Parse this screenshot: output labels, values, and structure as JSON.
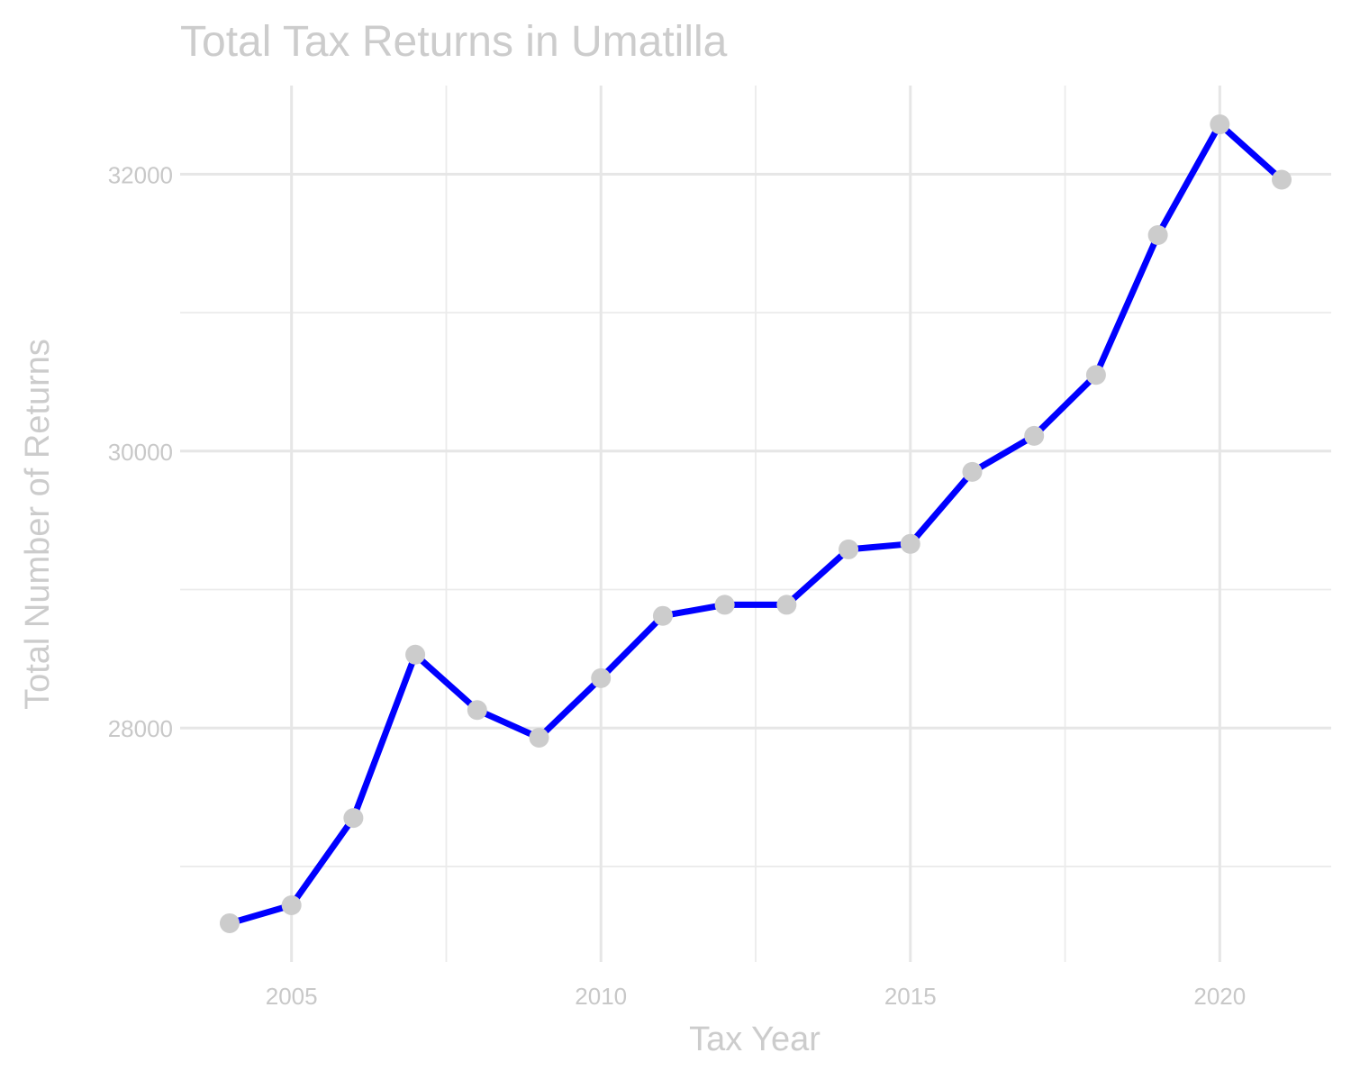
{
  "chart_data": {
    "type": "line",
    "title": "Total Tax Returns in Umatilla",
    "xlabel": "Tax Year",
    "ylabel": "Total Number of Returns",
    "x": [
      2004,
      2005,
      2006,
      2007,
      2008,
      2009,
      2010,
      2011,
      2012,
      2013,
      2014,
      2015,
      2016,
      2017,
      2018,
      2019,
      2020,
      2021
    ],
    "series": [
      {
        "values": [
          26590,
          26720,
          27350,
          28530,
          28130,
          27930,
          28360,
          28810,
          28890,
          28890,
          29290,
          29330,
          29850,
          30110,
          30550,
          31560,
          32360,
          31960
        ]
      }
    ],
    "xlim": [
      2003.2,
      2021.8
    ],
    "ylim": [
      26310,
      32640
    ],
    "x_major_ticks": [
      2005,
      2010,
      2015,
      2020
    ],
    "x_minor_ticks": [
      2007.5,
      2012.5,
      2017.5
    ],
    "y_major_ticks": [
      28000,
      30000,
      32000
    ],
    "y_minor_ticks": [
      27000,
      29000,
      31000
    ],
    "grid": true,
    "line_color": "#0000ff",
    "point_color": "#cccccc",
    "text_color": "#cccccc"
  }
}
